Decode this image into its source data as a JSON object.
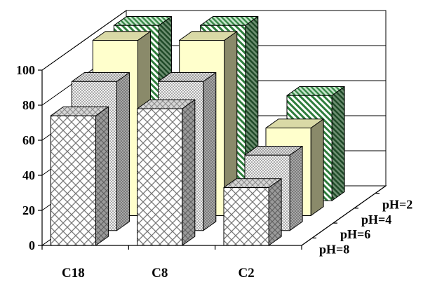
{
  "chart_data": {
    "type": "bar",
    "title": "",
    "xlabel": "",
    "ylabel": "",
    "ylim": [
      0,
      100
    ],
    "yticks": [
      0,
      20,
      40,
      60,
      80,
      100
    ],
    "grid": true,
    "categories": [
      "C18",
      "C8",
      "C2"
    ],
    "series": [
      {
        "name": "pH=8",
        "values": [
          74,
          78,
          33
        ],
        "color": "#ffffff",
        "pattern": "lattice"
      },
      {
        "name": "pH=6",
        "values": [
          85,
          85,
          43
        ],
        "color": "#cfcfcf",
        "pattern": "dots"
      },
      {
        "name": "pH=4",
        "values": [
          100,
          100,
          50
        ],
        "color": "#ffffcc",
        "pattern": "solid"
      },
      {
        "name": "pH=2",
        "values": [
          100,
          100,
          60
        ],
        "color": "#86c49c",
        "pattern": "diagonal"
      }
    ]
  }
}
